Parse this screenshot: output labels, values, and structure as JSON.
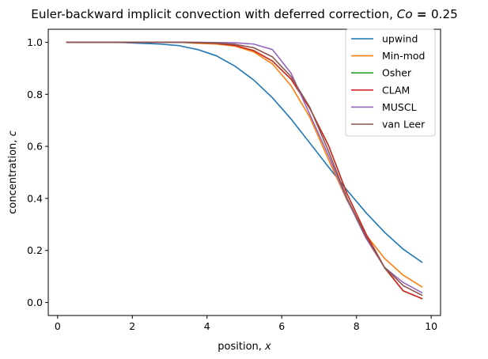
{
  "chart_data": {
    "type": "line",
    "title": {
      "prefix": "Euler-backward implicit convection with deferred correction, ",
      "var": "Co",
      "eq": " = ",
      "value": "0.25"
    },
    "xlabel": {
      "text": "position, ",
      "var": "x"
    },
    "ylabel": {
      "text": "concentration, ",
      "var": "c"
    },
    "xlim": [
      -0.25,
      10.25
    ],
    "ylim": [
      -0.05,
      1.05
    ],
    "xticks": [
      0,
      2,
      4,
      6,
      8,
      10
    ],
    "xtick_labels": [
      "0",
      "2",
      "4",
      "6",
      "8",
      "10"
    ],
    "yticks": [
      0.0,
      0.2,
      0.4,
      0.6,
      0.8,
      1.0
    ],
    "ytick_labels": [
      "0.0",
      "0.2",
      "0.4",
      "0.6",
      "0.8",
      "1.0"
    ],
    "grid": false,
    "legend_position": "top-right",
    "x": [
      0.25,
      0.75,
      1.25,
      1.75,
      2.25,
      2.75,
      3.25,
      3.75,
      4.25,
      4.75,
      5.25,
      5.75,
      6.25,
      6.75,
      7.25,
      7.75,
      8.25,
      8.75,
      9.25,
      9.75
    ],
    "series": [
      {
        "name": "upwind",
        "color": "#1f77b4",
        "values": [
          1.0,
          1.0,
          1.0,
          0.999,
          0.996,
          0.993,
          0.987,
          0.972,
          0.948,
          0.908,
          0.855,
          0.787,
          0.705,
          0.613,
          0.521,
          0.431,
          0.346,
          0.27,
          0.205,
          0.155
        ]
      },
      {
        "name": "Min-mod",
        "color": "#ff7f0e",
        "values": [
          1.0,
          1.0,
          1.0,
          1.0,
          1.0,
          1.0,
          1.0,
          0.996,
          0.993,
          0.985,
          0.963,
          0.917,
          0.833,
          0.712,
          0.55,
          0.392,
          0.261,
          0.17,
          0.105,
          0.06
        ]
      },
      {
        "name": "Osher",
        "color": "#2ca02c",
        "values": [
          1.0,
          1.0,
          1.0,
          1.0,
          1.0,
          1.0,
          1.0,
          0.998,
          0.996,
          0.988,
          0.968,
          0.928,
          0.858,
          0.746,
          0.604,
          0.417,
          0.265,
          0.133,
          0.045,
          0.015
        ]
      },
      {
        "name": "CLAM",
        "color": "#d62728",
        "values": [
          1.0,
          1.0,
          1.0,
          1.0,
          1.0,
          1.0,
          1.0,
          0.998,
          0.996,
          0.988,
          0.968,
          0.928,
          0.858,
          0.746,
          0.604,
          0.417,
          0.265,
          0.135,
          0.045,
          0.015
        ]
      },
      {
        "name": "MUSCL",
        "color": "#9467bd",
        "values": [
          1.0,
          1.0,
          1.0,
          1.0,
          1.0,
          1.0,
          1.0,
          1.0,
          0.999,
          0.998,
          0.993,
          0.972,
          0.881,
          0.723,
          0.565,
          0.395,
          0.248,
          0.135,
          0.077,
          0.038
        ]
      },
      {
        "name": "van Leer",
        "color": "#8c564b",
        "values": [
          1.0,
          1.0,
          1.0,
          1.0,
          1.0,
          1.0,
          1.0,
          0.999,
          0.997,
          0.992,
          0.979,
          0.944,
          0.868,
          0.75,
          0.582,
          0.4,
          0.255,
          0.135,
          0.065,
          0.028
        ]
      }
    ]
  }
}
